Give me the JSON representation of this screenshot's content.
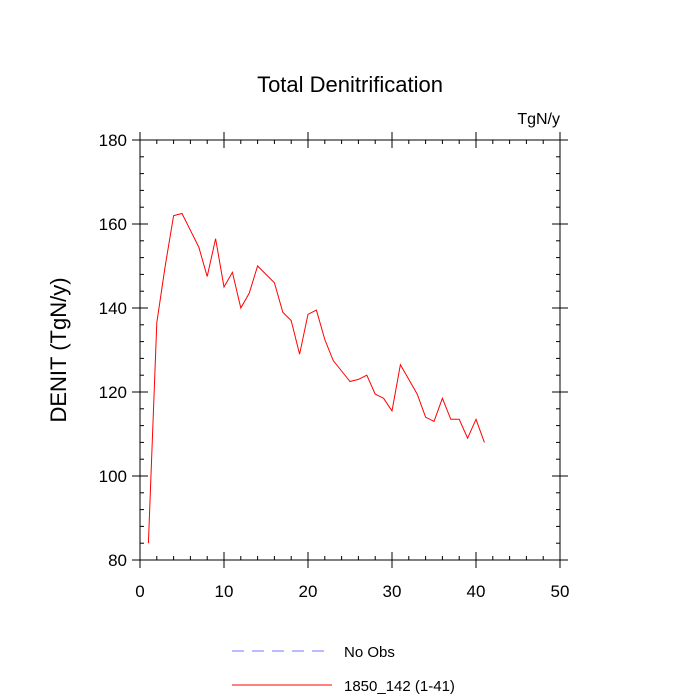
{
  "chart_data": {
    "type": "line",
    "title": "Total Denitrification",
    "units_label": "TgN/y",
    "xlabel": "",
    "ylabel": "DENIT  (TgN/y)",
    "xlim": [
      0,
      50
    ],
    "ylim": [
      80,
      180
    ],
    "x_major_ticks": [
      0,
      10,
      20,
      30,
      40,
      50
    ],
    "x_minor_step": 2,
    "y_major_ticks": [
      80,
      100,
      120,
      140,
      160,
      180
    ],
    "y_minor_step": 4,
    "x_tick_labels": [
      "0",
      "10",
      "20",
      "30",
      "40",
      "50"
    ],
    "y_tick_labels": [
      "80",
      "100",
      "120",
      "140",
      "160",
      "180"
    ],
    "grid": false,
    "legend_position": "bottom-center",
    "series": [
      {
        "name": "1850_142 (1-41)",
        "color": "#ff0000",
        "dash": "solid",
        "x": [
          1,
          2,
          3,
          4,
          5,
          6,
          7,
          8,
          9,
          10,
          11,
          12,
          13,
          14,
          15,
          16,
          17,
          18,
          19,
          20,
          21,
          22,
          23,
          24,
          25,
          26,
          27,
          28,
          29,
          30,
          31,
          32,
          33,
          34,
          35,
          36,
          37,
          38,
          39,
          40,
          41
        ],
        "y": [
          84,
          136.5,
          150,
          162,
          162.5,
          158.5,
          154.5,
          147.5,
          156.5,
          145,
          148.5,
          140,
          143.5,
          150,
          148,
          146,
          139,
          137,
          129,
          138.5,
          139.5,
          132.5,
          127.5,
          125,
          122.5,
          123,
          124,
          119.5,
          118.5,
          115.5,
          126.5,
          123,
          119.5,
          114,
          113,
          118.5,
          113.5,
          113.5,
          109,
          113.5,
          108
        ]
      }
    ],
    "legend": [
      {
        "label": "No Obs",
        "color": "#7777ff",
        "dash": "dashed"
      },
      {
        "label": "1850_142 (1-41)",
        "color": "#ff0000",
        "dash": "solid"
      }
    ]
  }
}
